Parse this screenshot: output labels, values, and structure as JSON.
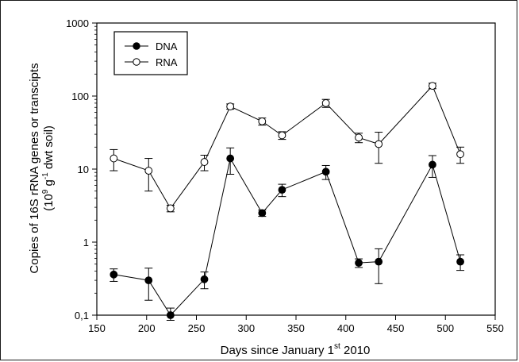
{
  "chart_data": {
    "type": "line",
    "title": "",
    "xlabel_main": "Days since January 1",
    "xlabel_sup": "st",
    "xlabel_tail": " 2010",
    "ylabel_line1": "Copies of 16S rRNA genes or transcipts",
    "ylabel_line2_pre": "(10",
    "ylabel_line2_sup1": "9",
    "ylabel_line2_mid": " g",
    "ylabel_line2_sup2": "-1",
    "ylabel_line2_post": " dwt soil)",
    "xlim": [
      150,
      550
    ],
    "ylim": [
      0.1,
      1000
    ],
    "yscale": "log",
    "grid": false,
    "legend_position": "top-left",
    "xticks": [
      150,
      200,
      250,
      300,
      350,
      400,
      450,
      500,
      550
    ],
    "xtick_labels": [
      "150",
      "200",
      "250",
      "300",
      "350",
      "400",
      "450",
      "500",
      "550"
    ],
    "yticks": [
      0.1,
      1,
      10,
      100,
      1000
    ],
    "ytick_labels": [
      "0,1",
      "1",
      "10",
      "100",
      "1000"
    ],
    "series": [
      {
        "name": "DNA",
        "marker": "filled-circle",
        "color": "#000000",
        "x": [
          167,
          202,
          224,
          258,
          284,
          316,
          336,
          380,
          413,
          433,
          487,
          515
        ],
        "y": [
          0.36,
          0.3,
          0.1,
          0.31,
          14,
          2.5,
          5.2,
          9.2,
          0.52,
          0.54,
          11.5,
          0.54
        ],
        "err": [
          0.07,
          0.14,
          0.025,
          0.08,
          5.5,
          0.25,
          1.0,
          2.0,
          0.07,
          0.27,
          3.8,
          0.13
        ]
      },
      {
        "name": "RNA",
        "marker": "open-circle",
        "color": "#000000",
        "x": [
          167,
          202,
          224,
          258,
          284,
          316,
          336,
          380,
          413,
          433,
          487,
          515
        ],
        "y": [
          14,
          9.5,
          2.9,
          12.5,
          72,
          45,
          29,
          80,
          27,
          22,
          138,
          16
        ],
        "err": [
          4.5,
          4.5,
          0.3,
          3.0,
          6,
          5,
          3.5,
          10,
          4,
          10,
          12,
          4
        ]
      }
    ]
  }
}
